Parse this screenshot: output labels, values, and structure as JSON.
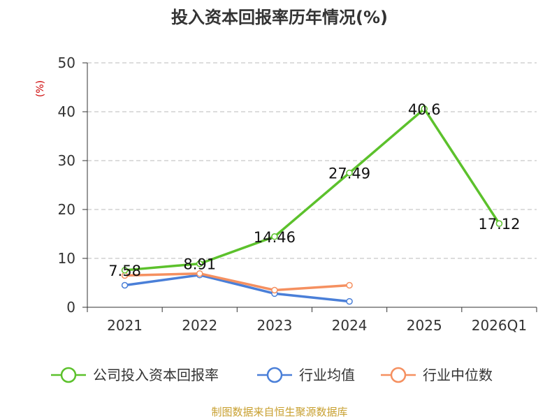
{
  "chart_data": {
    "type": "line",
    "title": "投入资本回报率历年情况(%)",
    "ylabel": "(%)",
    "categories": [
      "2021",
      "2022",
      "2023",
      "2024",
      "2025",
      "2026Q1"
    ],
    "ylim": [
      0,
      50
    ],
    "yticks": [
      0,
      10,
      20,
      30,
      40,
      50
    ],
    "grid": true,
    "legend_position": "bottom",
    "series": [
      {
        "name": "公司投入资本回报率",
        "color": "#5cc12c",
        "values": [
          7.58,
          8.91,
          14.46,
          27.49,
          40.6,
          17.12
        ],
        "labels": [
          "7.58",
          "8.91",
          "14.46",
          "27.49",
          "40.6",
          "17.12"
        ]
      },
      {
        "name": "行业均值",
        "color": "#4a7fd8",
        "values": [
          4.5,
          6.6,
          2.8,
          1.2,
          null,
          null
        ]
      },
      {
        "name": "行业中位数",
        "color": "#f59060",
        "values": [
          6.5,
          6.9,
          3.5,
          4.5,
          null,
          null
        ]
      }
    ]
  },
  "footer": {
    "source": "制图数据来自恒生聚源数据库"
  }
}
